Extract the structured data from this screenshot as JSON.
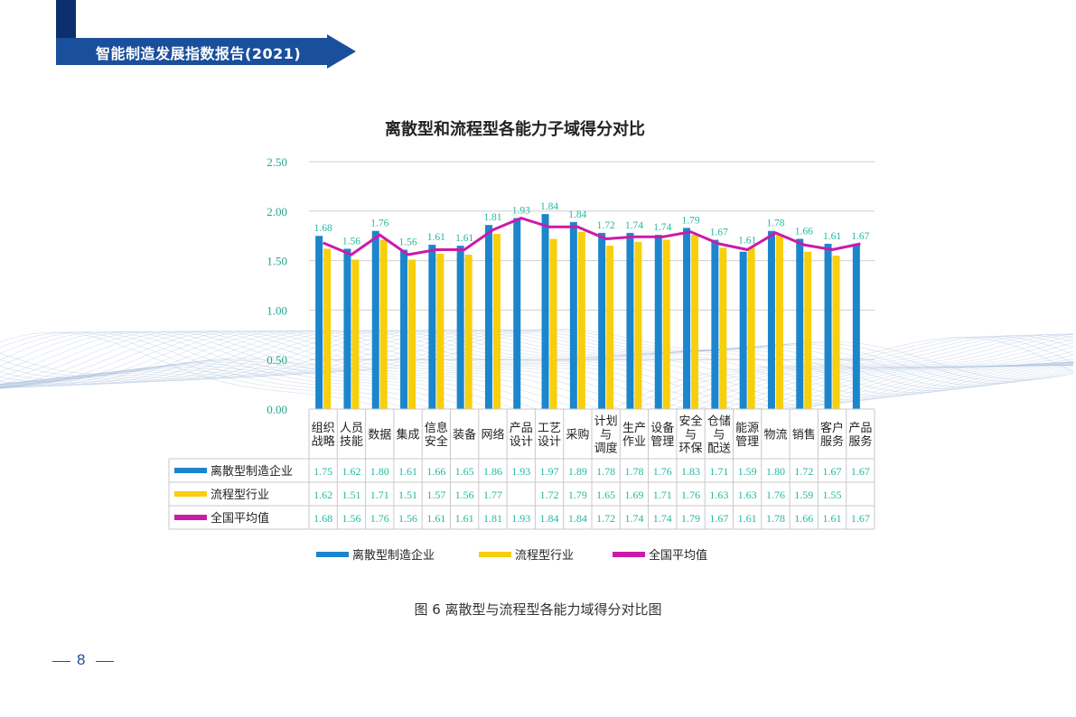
{
  "header": {
    "report_title": "智能制造发展指数报告(2021)"
  },
  "caption": "图 6 离散型与流程型各能力域得分对比图",
  "page_number": "8",
  "colors": {
    "discrete": "#1b86cc",
    "process": "#f7cf0c",
    "average": "#cc1aa8",
    "label": "#24b8a0",
    "banner_dark": "#0d2f6e",
    "banner": "#1a4f9c"
  },
  "chart_data": {
    "type": "bar",
    "title": "离散型和流程型各能力子域得分对比",
    "ylim": [
      0,
      2.5
    ],
    "yticks": [
      "0.00",
      "0.50",
      "1.00",
      "1.50",
      "2.00",
      "2.50"
    ],
    "grid": true,
    "legend_position": "bottom",
    "categories": [
      [
        "组织",
        "战略"
      ],
      [
        "人员",
        "技能"
      ],
      [
        "数据"
      ],
      [
        "集成"
      ],
      [
        "信息",
        "安全"
      ],
      [
        "装备"
      ],
      [
        "网络"
      ],
      [
        "产品",
        "设计"
      ],
      [
        "工艺",
        "设计"
      ],
      [
        "采购"
      ],
      [
        "计划",
        "与",
        "调度"
      ],
      [
        "生产",
        "作业"
      ],
      [
        "设备",
        "管理"
      ],
      [
        "安全",
        "与",
        "环保"
      ],
      [
        "仓储",
        "与",
        "配送"
      ],
      [
        "能源",
        "管理"
      ],
      [
        "物流"
      ],
      [
        "销售"
      ],
      [
        "客户",
        "服务"
      ],
      [
        "产品",
        "服务"
      ]
    ],
    "series": [
      {
        "name": "离散型制造企业",
        "kind": "bar",
        "values": [
          1.75,
          1.62,
          1.8,
          1.61,
          1.66,
          1.65,
          1.86,
          1.93,
          1.97,
          1.89,
          1.78,
          1.78,
          1.76,
          1.83,
          1.71,
          1.59,
          1.8,
          1.72,
          1.67,
          1.67
        ]
      },
      {
        "name": "流程型行业",
        "kind": "bar",
        "values": [
          1.62,
          1.51,
          1.71,
          1.51,
          1.57,
          1.56,
          1.77,
          null,
          1.72,
          1.79,
          1.65,
          1.69,
          1.71,
          1.76,
          1.63,
          1.63,
          1.76,
          1.59,
          1.55,
          null
        ]
      },
      {
        "name": "全国平均值",
        "kind": "line",
        "values": [
          1.68,
          1.56,
          1.76,
          1.56,
          1.61,
          1.61,
          1.81,
          1.93,
          1.84,
          1.84,
          1.72,
          1.74,
          1.74,
          1.79,
          1.67,
          1.61,
          1.78,
          1.66,
          1.61,
          1.67
        ]
      }
    ]
  }
}
